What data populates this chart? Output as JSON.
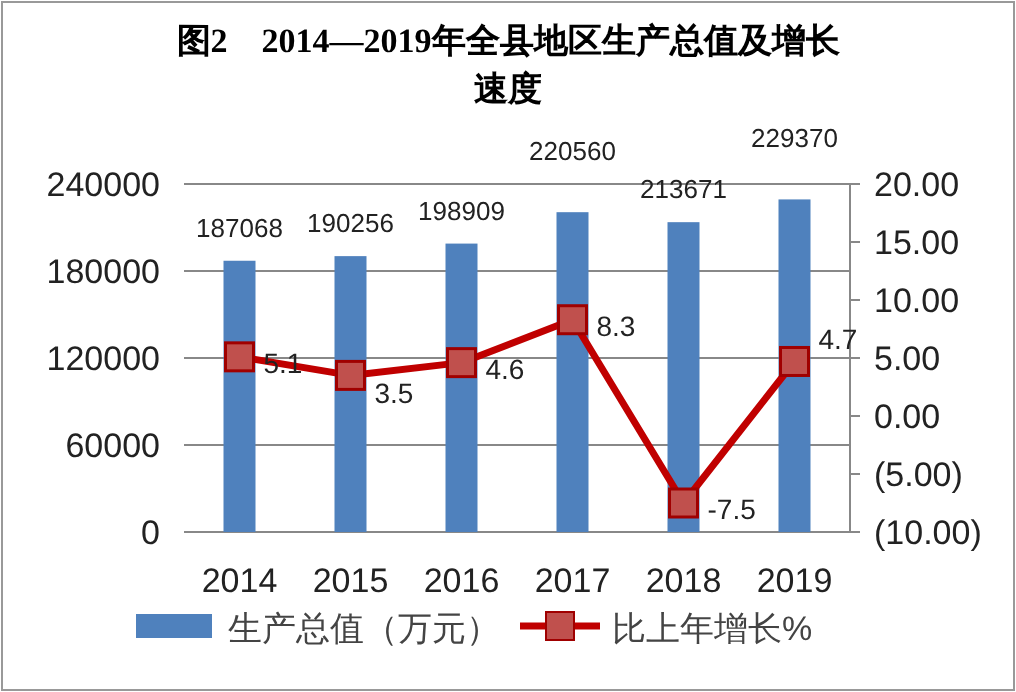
{
  "chart_data": {
    "type": "bar",
    "title": "图2　2014—2019年全县地区生产总值及增长速度",
    "categories": [
      "2014",
      "2015",
      "2016",
      "2017",
      "2018",
      "2019"
    ],
    "series": [
      {
        "name": "生产总值（万元）",
        "color": "#4f81bd",
        "values": [
          187068,
          190256,
          198909,
          220560,
          213671,
          229370
        ]
      },
      {
        "name": "比上年增长%",
        "type": "line",
        "axis": "y2",
        "color": "#c00000",
        "marker": "square",
        "values": [
          5.1,
          3.5,
          4.6,
          8.3,
          -7.5,
          4.7
        ]
      }
    ],
    "ylim": [
      0,
      240000
    ],
    "yticks": [
      0,
      60000,
      120000,
      180000,
      240000
    ],
    "y2lim": [
      -10,
      20
    ],
    "y2ticks": [
      {
        "value": -10,
        "label": "(10.00)"
      },
      {
        "value": -5,
        "label": "(5.00)"
      },
      {
        "value": 0,
        "label": "0.00"
      },
      {
        "value": 5,
        "label": "5.00"
      },
      {
        "value": 10,
        "label": "10.00"
      },
      {
        "value": 15,
        "label": "15.00"
      },
      {
        "value": 20,
        "label": "20.00"
      }
    ],
    "grid": "y",
    "legend": "bottom",
    "data_labels": true
  }
}
